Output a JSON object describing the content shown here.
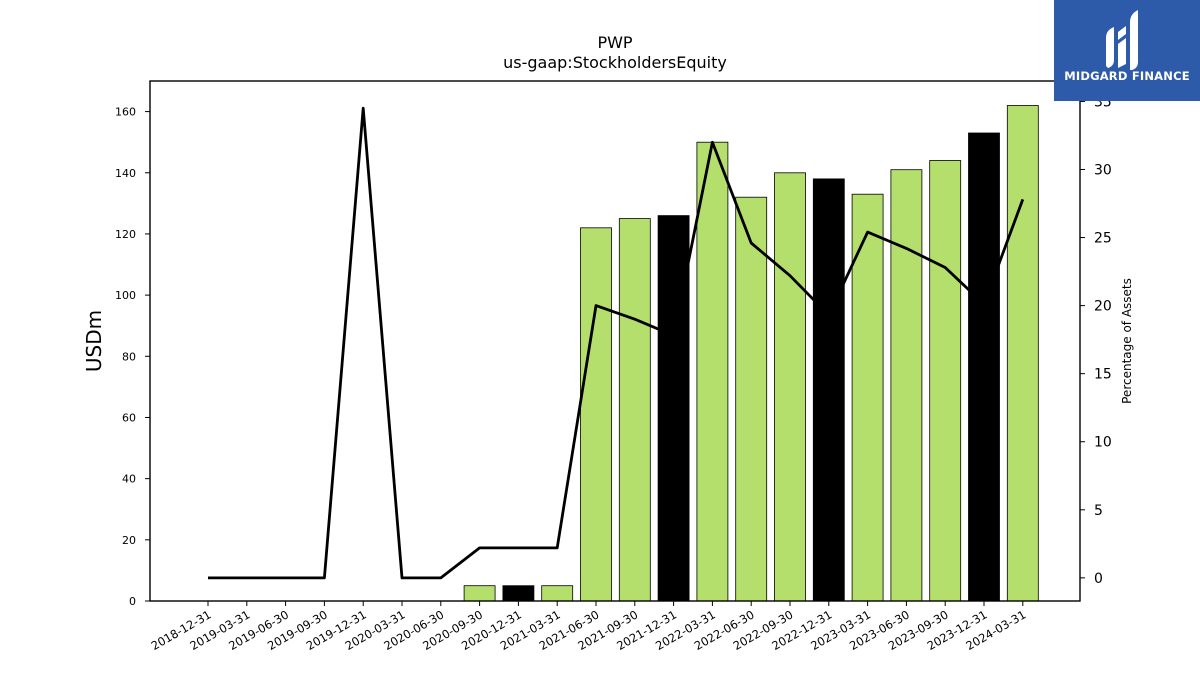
{
  "chart_data": {
    "type": "bar",
    "title": "PWP",
    "subtitle": "us-gaap:StockholdersEquity",
    "ylabel": "USDm",
    "y2label": "Percentage of Assets",
    "ylim": [
      0,
      170
    ],
    "y2lim": [
      -1.7,
      36.5
    ],
    "yticks": [
      0,
      20,
      40,
      60,
      80,
      100,
      120,
      140,
      160
    ],
    "y2ticks": [
      0,
      5,
      10,
      15,
      20,
      25,
      30,
      35
    ],
    "categories": [
      "2018-12-31",
      "2019-03-31",
      "2019-06-30",
      "2019-09-30",
      "2019-12-31",
      "2020-03-31",
      "2020-06-30",
      "2020-09-30",
      "2020-12-31",
      "2021-03-31",
      "2021-06-30",
      "2021-09-30",
      "2021-12-31",
      "2022-03-31",
      "2022-06-30",
      "2022-09-30",
      "2022-12-31",
      "2023-03-31",
      "2023-06-30",
      "2023-09-30",
      "2023-12-31",
      "2024-03-31"
    ],
    "series": [
      {
        "values": [
          0,
          0,
          0,
          0,
          0,
          0,
          0,
          5,
          5,
          5,
          122,
          125,
          126,
          150,
          132,
          140,
          138,
          133,
          141,
          144,
          153,
          162
        ],
        "year_end": [
          false,
          false,
          false,
          false,
          false,
          false,
          false,
          false,
          true,
          false,
          false,
          false,
          true,
          false,
          false,
          false,
          true,
          false,
          false,
          false,
          true,
          false
        ],
        "colors": {
          "quarter": "#b5df6c",
          "year_end": "#000000"
        }
      },
      {
        "type": "line",
        "axis": "right",
        "values": [
          0,
          0,
          0,
          0,
          34.5,
          0,
          0,
          2.2,
          2.2,
          2.2,
          20,
          19,
          17.8,
          32,
          24.6,
          22.2,
          19.3,
          25.4,
          24.2,
          22.8,
          20.1,
          27.8
        ],
        "color": "#000000"
      }
    ],
    "grid": false
  },
  "logo": {
    "text": "MIDGARD FINANCE",
    "color": "#2e5aaa"
  }
}
